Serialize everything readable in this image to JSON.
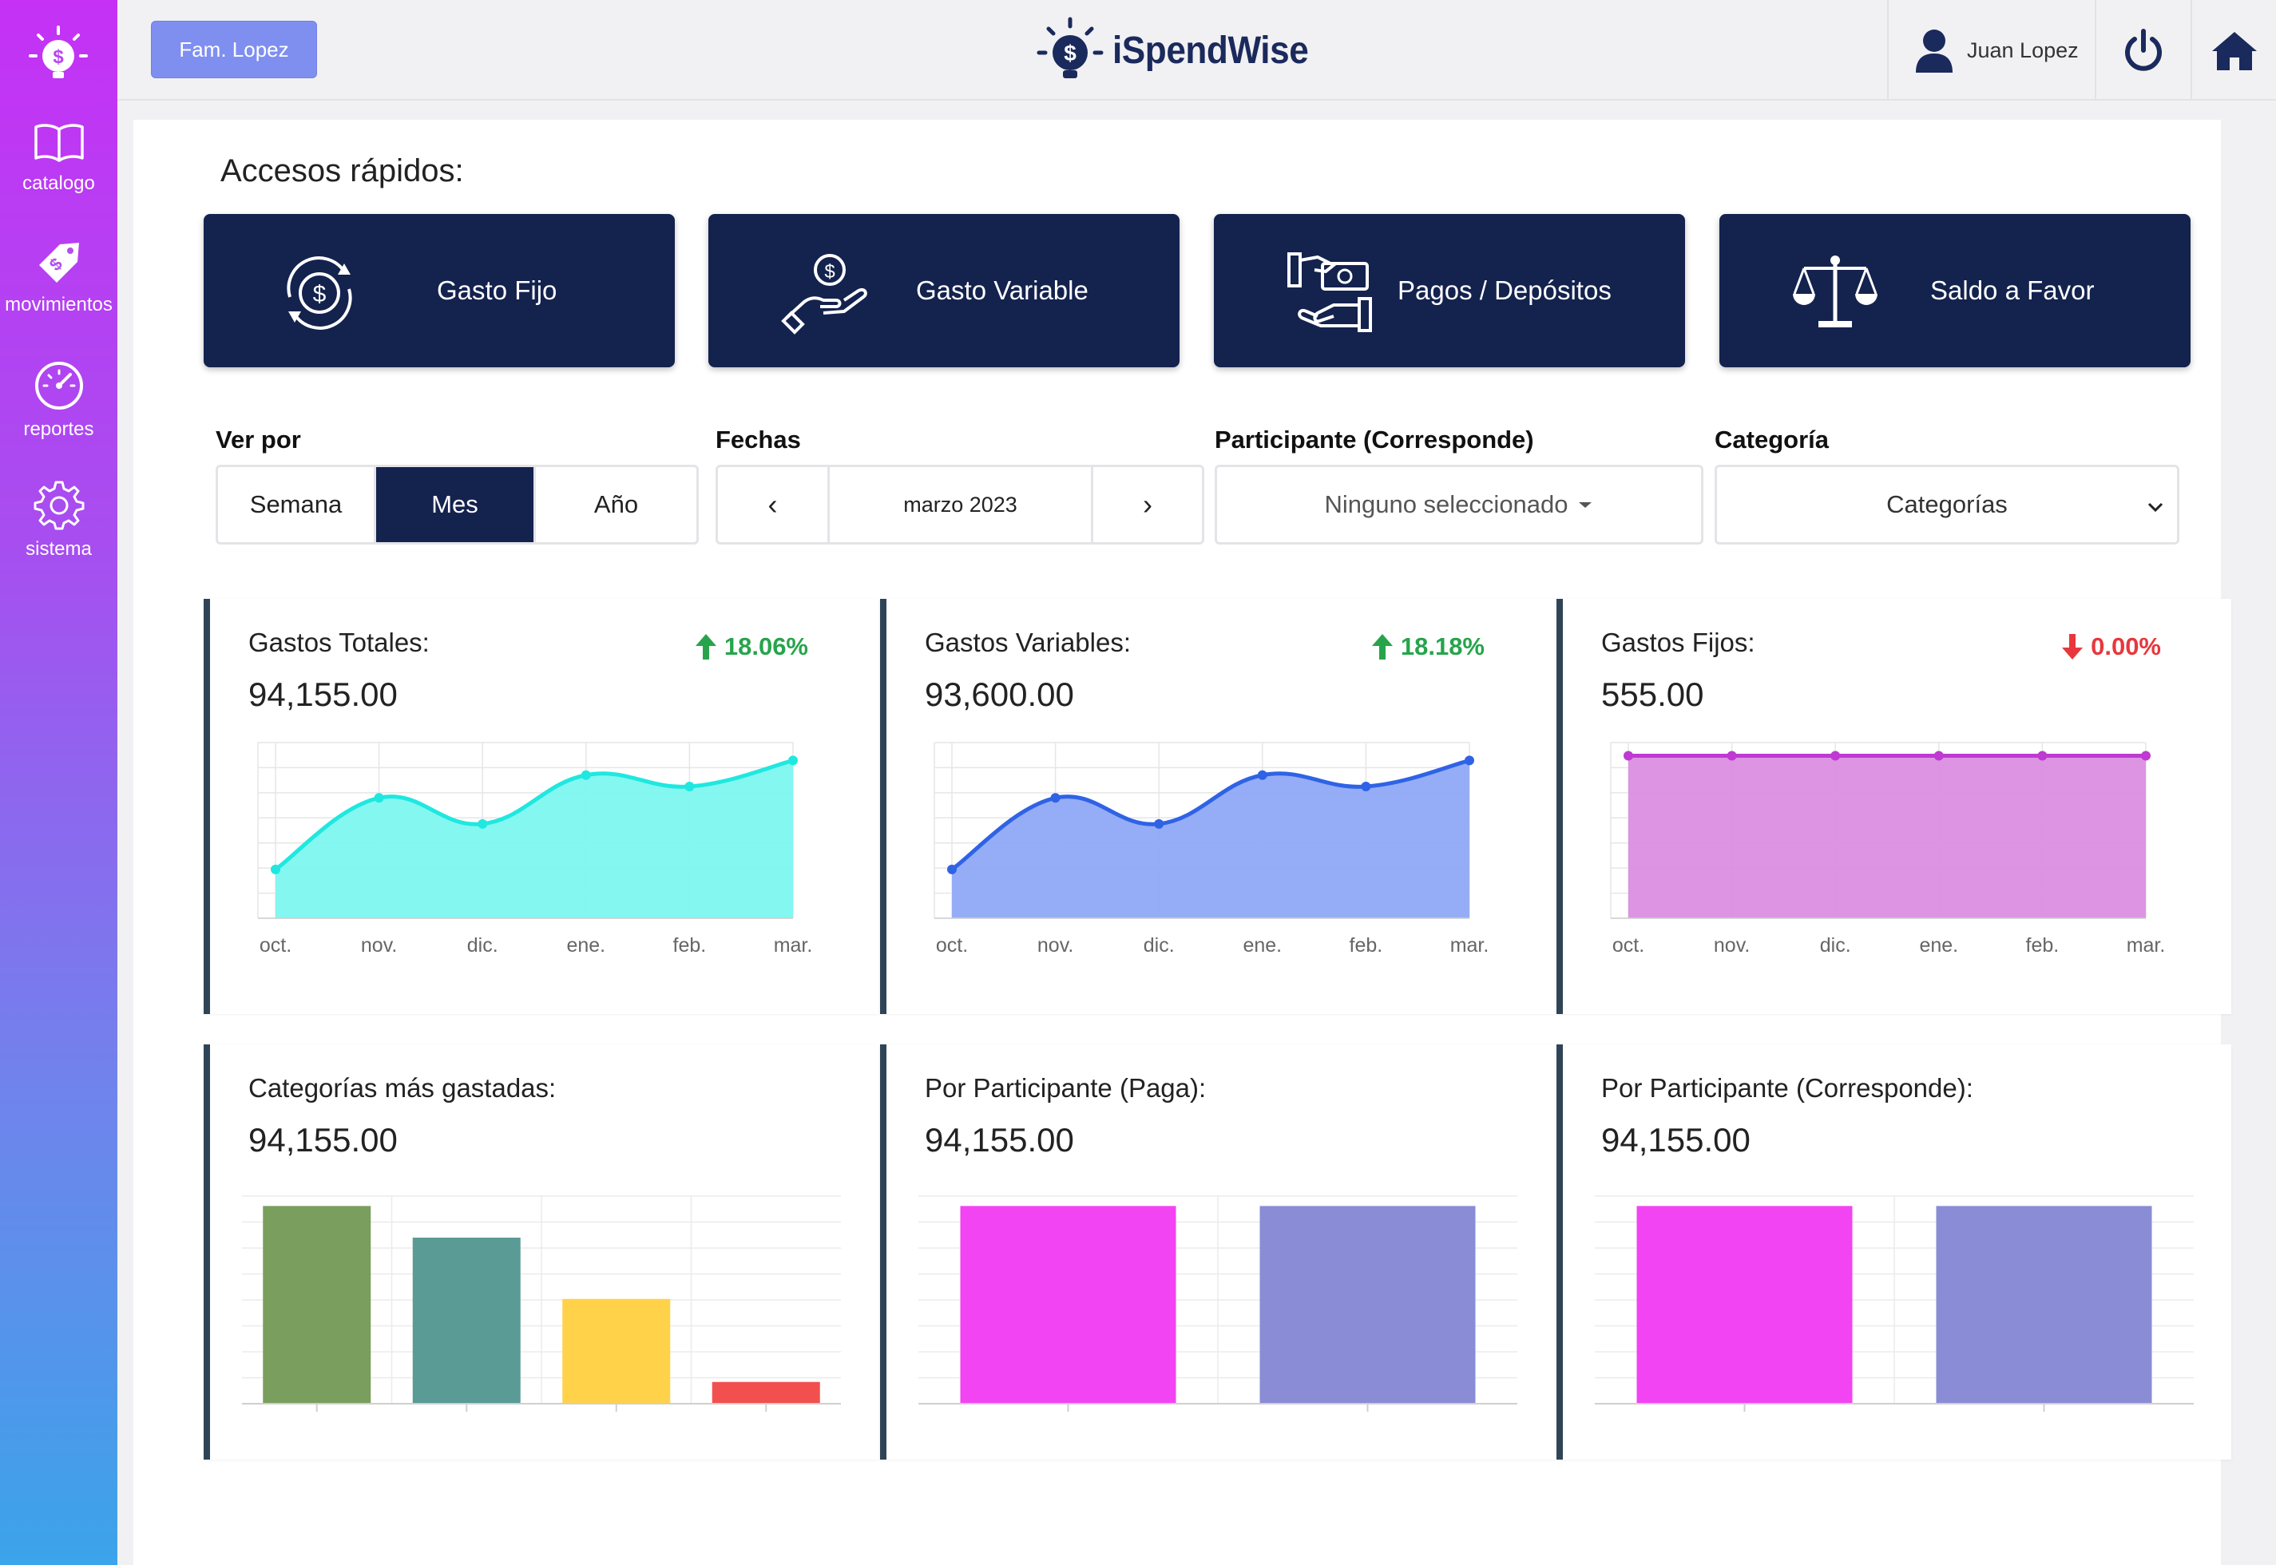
{
  "app": {
    "brand": "iSpendWise"
  },
  "sidebar": {
    "items": [
      {
        "label": "catalogo",
        "icon": "book-icon"
      },
      {
        "label": "movimientos",
        "icon": "tag-icon"
      },
      {
        "label": "reportes",
        "icon": "gauge-icon"
      },
      {
        "label": "sistema",
        "icon": "gear-icon"
      }
    ]
  },
  "header": {
    "family_label": "Fam. Lopez",
    "user_name": "Juan Lopez"
  },
  "quick": {
    "title": "Accesos rápidos:",
    "items": [
      {
        "label": "Gasto Fijo",
        "icon": "recurring-money-icon"
      },
      {
        "label": "Gasto Variable",
        "icon": "hand-coin-icon"
      },
      {
        "label": "Pagos / Depósitos",
        "icon": "money-exchange-icon"
      },
      {
        "label": "Saldo a Favor",
        "icon": "balance-scale-icon"
      }
    ]
  },
  "filters": {
    "view_label": "Ver por",
    "view_options": [
      "Semana",
      "Mes",
      "Año"
    ],
    "view_selected": "Mes",
    "dates_label": "Fechas",
    "date_value": "marzo 2023",
    "prev": "‹",
    "next": "›",
    "participant_label": "Participante (Corresponde)",
    "participant_value": "Ninguno seleccionado",
    "category_label": "Categoría",
    "category_value": "Categorías"
  },
  "cards": [
    {
      "title": "Gastos Totales:",
      "value": "94,155.00",
      "change": "18.06%",
      "trend": "up"
    },
    {
      "title": "Gastos Variables:",
      "value": "93,600.00",
      "change": "18.18%",
      "trend": "up"
    },
    {
      "title": "Gastos Fijos:",
      "value": "555.00",
      "change": "0.00%",
      "trend": "down"
    },
    {
      "title": "Categorías más gastadas:",
      "value": "94,155.00"
    },
    {
      "title": "Por Participante (Paga):",
      "value": "94,155.00"
    },
    {
      "title": "Por Participante (Corresponde):",
      "value": "94,155.00"
    }
  ],
  "colors": {
    "accent_dark": "#14224e",
    "up": "#27a44b",
    "down": "#e8373c"
  },
  "chart_data": [
    {
      "type": "area",
      "categories": [
        "oct.",
        "nov.",
        "dic.",
        "ene.",
        "feb.",
        "mar."
      ],
      "values": [
        0.3,
        0.74,
        0.58,
        0.88,
        0.81,
        0.97
      ],
      "ylim": [
        0,
        1.08
      ],
      "color": "#1ee8df",
      "fill": "#7df7f0"
    },
    {
      "type": "area",
      "categories": [
        "oct.",
        "nov.",
        "dic.",
        "ene.",
        "feb.",
        "mar."
      ],
      "values": [
        0.3,
        0.74,
        0.58,
        0.88,
        0.81,
        0.97
      ],
      "ylim": [
        0,
        1.08
      ],
      "color": "#2f63e6",
      "fill": "#8fa9f6"
    },
    {
      "type": "area",
      "categories": [
        "oct.",
        "nov.",
        "dic.",
        "ene.",
        "feb.",
        "mar."
      ],
      "values": [
        555,
        555,
        555,
        555,
        555,
        555
      ],
      "ylim": [
        0,
        600
      ],
      "color": "#bf3ad2",
      "fill": "#db8ee2"
    },
    {
      "type": "bar",
      "values": [
        1.0,
        0.84,
        0.53,
        0.11
      ],
      "ylim": [
        0,
        1.05
      ],
      "colors": [
        "#7a9e5d",
        "#5a9b96",
        "#ffd24a",
        "#f2504e"
      ]
    },
    {
      "type": "bar",
      "values": [
        1.0,
        1.0
      ],
      "ylim": [
        0,
        1.05
      ],
      "colors": [
        "#f244f2",
        "#8a8cd6"
      ]
    },
    {
      "type": "bar",
      "values": [
        1.0,
        1.0
      ],
      "ylim": [
        0,
        1.05
      ],
      "colors": [
        "#f244f2",
        "#8a8cd6"
      ]
    }
  ]
}
